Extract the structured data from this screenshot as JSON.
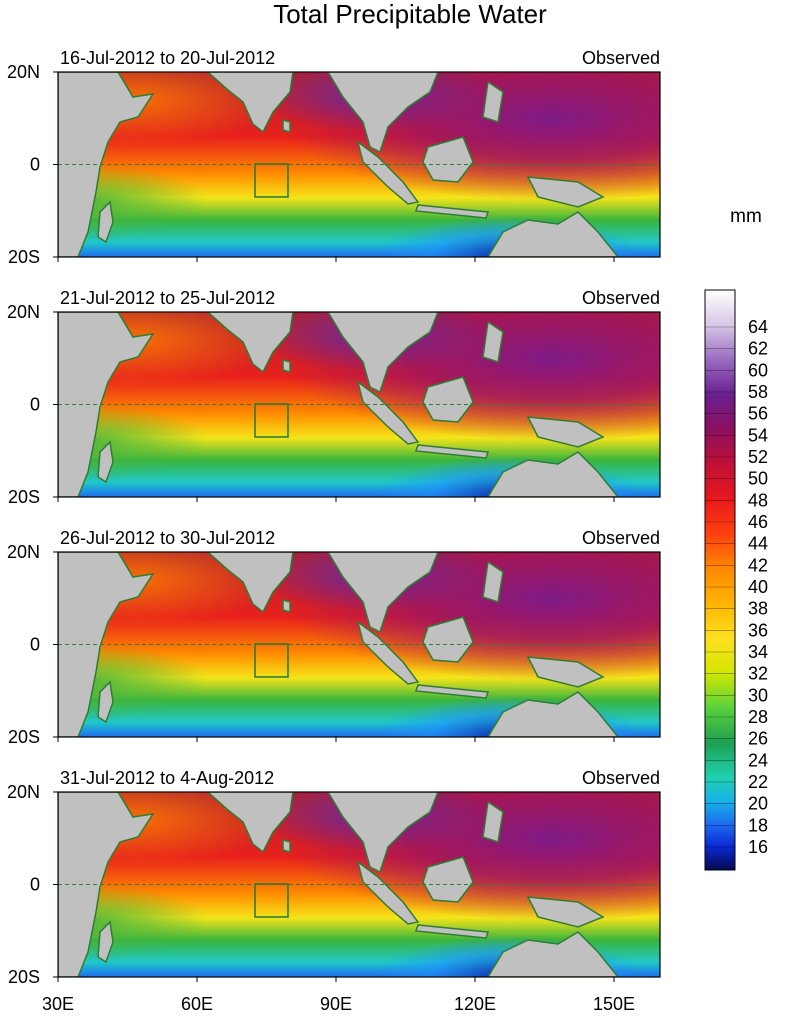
{
  "title": "Total Precipitable Water",
  "colorbar": {
    "unit": "mm",
    "labels": [
      "64",
      "62",
      "60",
      "58",
      "56",
      "54",
      "52",
      "50",
      "48",
      "46",
      "44",
      "42",
      "40",
      "38",
      "36",
      "34",
      "32",
      "30",
      "28",
      "26",
      "24",
      "22",
      "20",
      "18",
      "16"
    ]
  },
  "x_axis_ticks": [
    "30E",
    "60E",
    "90E",
    "120E",
    "150E"
  ],
  "y_axis_ticks": [
    "20N",
    "0",
    "20S"
  ],
  "panels": [
    {
      "period": "16-Jul-2012 to 20-Jul-2012",
      "source": "Observed"
    },
    {
      "period": "21-Jul-2012 to 25-Jul-2012",
      "source": "Observed"
    },
    {
      "period": "26-Jul-2012 to 30-Jul-2012",
      "source": "Observed"
    },
    {
      "period": "31-Jul-2012 to 4-Aug-2012",
      "source": "Observed"
    }
  ],
  "colors": {
    "land": "#c0c0c0",
    "coastline": "#2e7d32",
    "equator": "#2e7d32"
  }
}
